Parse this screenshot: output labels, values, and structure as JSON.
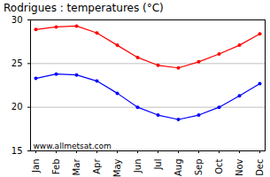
{
  "chart_data": {
    "type": "line",
    "title": "Rodrigues : temperatures (°C)",
    "categories": [
      "Jan",
      "Feb",
      "Mar",
      "Apr",
      "May",
      "Jun",
      "Jul",
      "Aug",
      "Sep",
      "Oct",
      "Nov",
      "Dec"
    ],
    "series": [
      {
        "color": "#ff0000",
        "marker": "circle",
        "values": [
          28.9,
          29.2,
          29.3,
          28.5,
          27.1,
          25.7,
          24.8,
          24.5,
          25.2,
          26.1,
          27.1,
          28.4
        ]
      },
      {
        "color": "#0000ff",
        "marker": "circle",
        "values": [
          23.3,
          23.8,
          23.7,
          23.0,
          21.6,
          20.0,
          19.1,
          18.6,
          19.1,
          20.0,
          21.3,
          22.7
        ]
      }
    ],
    "ylim": [
      15,
      30
    ],
    "yticks": [
      15,
      20,
      25,
      30
    ],
    "grid": true,
    "annotations": [
      "www.allmetsat.com"
    ]
  }
}
